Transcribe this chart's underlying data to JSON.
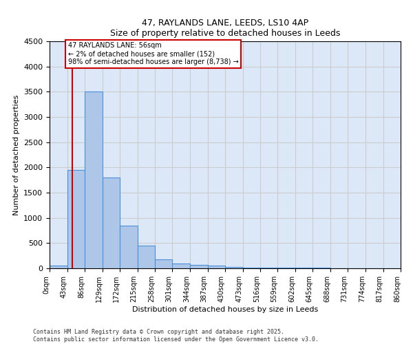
{
  "title": "47, RAYLANDS LANE, LEEDS, LS10 4AP",
  "subtitle": "Size of property relative to detached houses in Leeds",
  "xlabel": "Distribution of detached houses by size in Leeds",
  "ylabel": "Number of detached properties",
  "bar_edges": [
    0,
    43,
    86,
    129,
    172,
    215,
    258,
    301,
    344,
    387,
    430,
    473,
    516,
    559,
    602,
    645,
    688,
    731,
    774,
    817,
    860
  ],
  "bar_heights": [
    50,
    1950,
    3500,
    1800,
    850,
    450,
    175,
    100,
    75,
    50,
    25,
    20,
    15,
    15,
    10,
    10,
    5,
    5,
    5,
    5
  ],
  "bar_color": "#aec6e8",
  "bar_edge_color": "#4a90d9",
  "bar_linewidth": 0.8,
  "red_line_x": 56,
  "red_line_color": "#cc0000",
  "ylim": [
    0,
    4500
  ],
  "yticks": [
    0,
    500,
    1000,
    1500,
    2000,
    2500,
    3000,
    3500,
    4000,
    4500
  ],
  "annotation_text": "47 RAYLANDS LANE: 56sqm\n← 2% of detached houses are smaller (152)\n98% of semi-detached houses are larger (8,738) →",
  "annotation_box_color": "#ffffff",
  "annotation_box_edge_color": "#cc0000",
  "grid_color": "#cccccc",
  "background_color": "#dce8f8",
  "footer_line1": "Contains HM Land Registry data © Crown copyright and database right 2025.",
  "footer_line2": "Contains public sector information licensed under the Open Government Licence v3.0.",
  "tick_label_rotation": 90,
  "tick_labels": [
    "0sqm",
    "43sqm",
    "86sqm",
    "129sqm",
    "172sqm",
    "215sqm",
    "258sqm",
    "301sqm",
    "344sqm",
    "387sqm",
    "430sqm",
    "473sqm",
    "516sqm",
    "559sqm",
    "602sqm",
    "645sqm",
    "688sqm",
    "731sqm",
    "774sqm",
    "817sqm",
    "860sqm"
  ]
}
